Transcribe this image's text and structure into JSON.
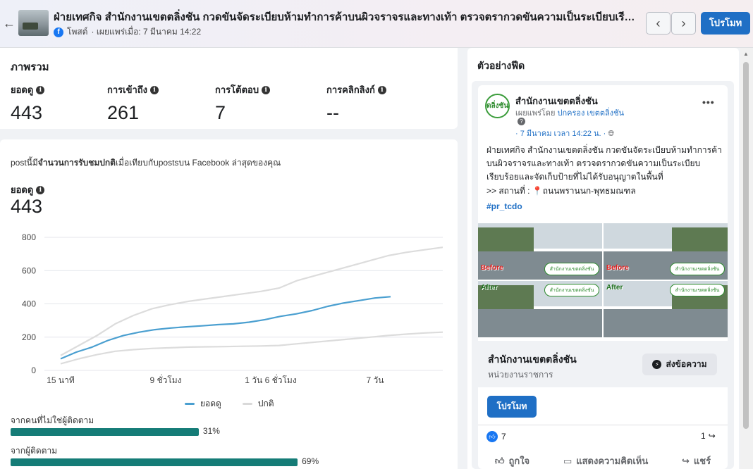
{
  "header": {
    "title": "ฝ่ายเทศกิจ สำนักงานเขตตลิ่งชัน กวดขันจัดระเบียบห้ามทำการค้าบนผิวจราจรและทางเท้า ตรวจตรากวดขันความเป็นระเบียบเรียบร้อ...",
    "post_type": "โพสต์",
    "published": "· เผยแพร่เมื่อ: 7 มีนาคม 14:22",
    "prev_label": "‹",
    "next_label": "›",
    "promote_label": "โปรโมท",
    "back_label": "←",
    "fb_letter": "f"
  },
  "overview": {
    "title": "ภาพรวม",
    "metrics": [
      {
        "label": "ยอดดู",
        "value": "443"
      },
      {
        "label": "การเข้าถึง",
        "value": "261"
      },
      {
        "label": "การโต้ตอบ",
        "value": "7"
      },
      {
        "label": "การคลิกลิงก์",
        "value": "--"
      }
    ]
  },
  "chart_section": {
    "desc_prefix": "postนี้มี",
    "desc_bold": "จำนวนการรับชมปกติ",
    "desc_suffix": "เมื่อเทียบกับpostsบน Facebook ล่าสุดของคุณ",
    "views_label": "ยอดดู",
    "views_value": "443",
    "legend": [
      {
        "name": "ยอดดู",
        "color": "#4a9fd0"
      },
      {
        "name": "ปกติ",
        "color": "#d9d9d9"
      }
    ],
    "bars": [
      {
        "label": "จากคนที่ไม่ใช่ผู้ติดตาม",
        "value": 31,
        "pct": "31%"
      },
      {
        "label": "จากผู้ติดตาม",
        "value": 69,
        "pct": "69%"
      }
    ]
  },
  "chart_data": {
    "type": "line",
    "x_ticks": [
      "15 นาที",
      "9 ชั่วโมง",
      "1 วัน 6 ชั่วโมง",
      "7 วัน"
    ],
    "ylim": [
      0,
      800
    ],
    "y_ticks": [
      "0",
      "200",
      "400",
      "600",
      "800"
    ],
    "grid": true,
    "legend_position": "bottom",
    "series": [
      {
        "name": "ยอดดู",
        "values": [
          70,
          110,
          140,
          180,
          210,
          230,
          245,
          255,
          262,
          268,
          275,
          280,
          290,
          305,
          325,
          340,
          360,
          385,
          405,
          420,
          435,
          443
        ]
      },
      {
        "name": "ปกติ",
        "values": [
          90,
          150,
          210,
          280,
          330,
          370,
          395,
          415,
          430,
          445,
          460,
          475,
          495,
          540,
          570,
          600,
          630,
          660,
          690,
          710,
          725,
          740
        ]
      },
      {
        "name": "ปกติ-ล่าง",
        "values": [
          40,
          70,
          95,
          115,
          125,
          132,
          136,
          140,
          142,
          143,
          145,
          147,
          150,
          160,
          170,
          180,
          190,
          200,
          210,
          218,
          225,
          230
        ]
      }
    ]
  },
  "preview": {
    "title": "ตัวอย่างฟีด",
    "avatar_text": "ตลิ่งชัน",
    "page_name": "สำนักงานเขตตลิ่งชัน",
    "published_by_prefix": "เผยแพร่โดย",
    "published_by_name": "ปกครอง เขตตลิ่งชัน",
    "date": "· 7 มีนาคม เวลา 14:22 น. ·",
    "more": "•••",
    "text": "ฝ่ายเทศกิจ สำนักงานเขตตลิ่งชัน กวดขันจัดระเบียบห้ามทำการค้าบนผิวจราจรและทางเท้า ตรวจตรากวดขันความเป็นระเบียบเรียบร้อยและจัดเก็บป้ายที่ไม่ได้รับอนุญาตในพื้นที่",
    "location": ">> สถานที่ : 📍ถนนพรานนก-พุทธมณฑล",
    "hashtag": "#pr_tcdo",
    "photo_before": "Before",
    "photo_after": "After",
    "photo_badge": "สำนักงานเขตตลิ่งชัน",
    "page_box_name": "สำนักงานเขตตลิ่งชัน",
    "page_box_category": "หน่วยงานราชการ",
    "message_label": "ส่งข้อความ",
    "promote_label": "โปรโมท",
    "likes": "7",
    "shares": "1",
    "actions": [
      "ถูกใจ",
      "แสดงความคิดเห็น",
      "แชร์"
    ]
  }
}
